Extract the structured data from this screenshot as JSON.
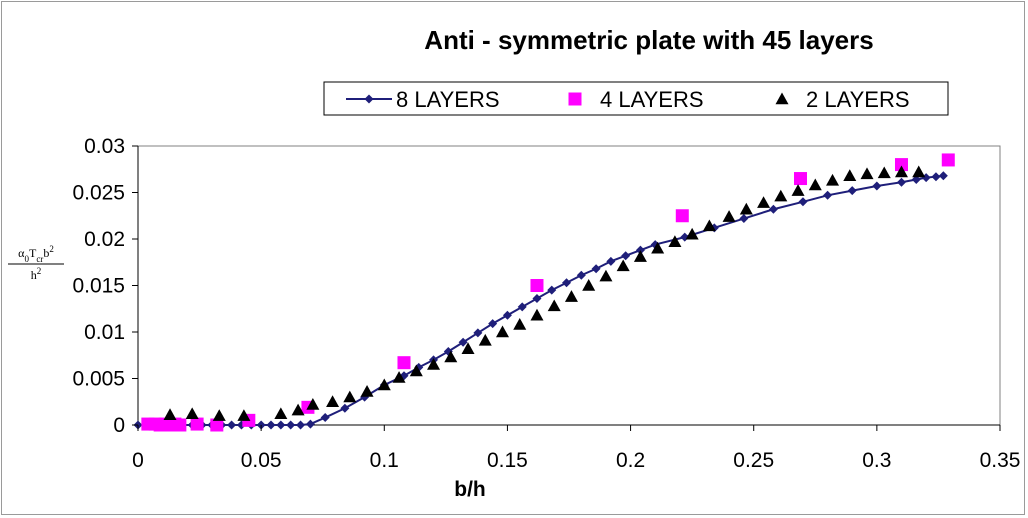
{
  "chart_data": {
    "type": "scatter",
    "title": "Anti - symmetric plate with 45 layers",
    "xlabel": "b/h",
    "ylabel": {
      "numerator_parts": [
        {
          "text": "α",
          "style": "normal"
        },
        {
          "text": "0",
          "style": "sub"
        },
        {
          "text": "T",
          "style": "normal"
        },
        {
          "text": "cr",
          "style": "sub"
        },
        {
          "text": "b",
          "style": "normal"
        },
        {
          "text": "2",
          "style": "sup"
        }
      ],
      "denominator_parts": [
        {
          "text": "h",
          "style": "normal"
        },
        {
          "text": "2",
          "style": "sup"
        }
      ]
    },
    "xlim": [
      0,
      0.35
    ],
    "ylim": [
      0,
      0.03
    ],
    "x_ticks": [
      0,
      0.05,
      0.1,
      0.15,
      0.2,
      0.25,
      0.3,
      0.35
    ],
    "x_tick_labels": [
      "0",
      "0.05",
      "0.1",
      "0.15",
      "0.2",
      "0.25",
      "0.3",
      "0.35"
    ],
    "y_ticks": [
      0,
      0.005,
      0.01,
      0.015,
      0.02,
      0.025,
      0.03
    ],
    "y_tick_labels": [
      "0",
      "0.005",
      "0.01",
      "0.015",
      "0.02",
      "0.025",
      "0.03"
    ],
    "grid": false,
    "legend_position": "top-center",
    "series": [
      {
        "name": "8 LAYERS",
        "marker": "diamond",
        "line": true,
        "color": "#1f1f7a",
        "x": [
          0.0,
          0.003,
          0.007,
          0.01,
          0.014,
          0.018,
          0.022,
          0.026,
          0.03,
          0.034,
          0.038,
          0.042,
          0.046,
          0.05,
          0.054,
          0.058,
          0.062,
          0.066,
          0.07,
          0.076,
          0.084,
          0.092,
          0.1,
          0.108,
          0.114,
          0.12,
          0.126,
          0.132,
          0.138,
          0.144,
          0.15,
          0.156,
          0.162,
          0.168,
          0.174,
          0.18,
          0.186,
          0.192,
          0.198,
          0.204,
          0.21,
          0.222,
          0.234,
          0.246,
          0.258,
          0.27,
          0.28,
          0.29,
          0.3,
          0.31,
          0.316,
          0.32,
          0.324,
          0.327
        ],
        "y": [
          0.0,
          0.0,
          0.0,
          0.0,
          0.0,
          0.0,
          0.0,
          0.0,
          0.0,
          0.0,
          0.0,
          0.0,
          0.0,
          0.0,
          0.0,
          0.0,
          0.0,
          0.0,
          0.0001,
          0.0008,
          0.0018,
          0.003,
          0.0043,
          0.0053,
          0.0062,
          0.007,
          0.0079,
          0.0089,
          0.0099,
          0.0109,
          0.0118,
          0.0127,
          0.0136,
          0.0145,
          0.0153,
          0.0161,
          0.0168,
          0.0176,
          0.0182,
          0.0188,
          0.0194,
          0.0202,
          0.0212,
          0.0222,
          0.0232,
          0.024,
          0.0247,
          0.0252,
          0.0257,
          0.0261,
          0.0264,
          0.0266,
          0.0267,
          0.0268
        ]
      },
      {
        "name": "4 LAYERS",
        "marker": "square",
        "line": false,
        "color": "#ff00ff",
        "x": [
          0.004,
          0.007,
          0.009,
          0.011,
          0.013,
          0.015,
          0.017,
          0.024,
          0.032,
          0.045,
          0.069,
          0.108,
          0.162,
          0.221,
          0.269,
          0.31,
          0.329
        ],
        "y": [
          0.0001,
          0.0001,
          0.0,
          0.0001,
          0.0,
          0.0001,
          0.0,
          0.0001,
          0.0,
          0.0005,
          0.0019,
          0.0067,
          0.015,
          0.0225,
          0.0265,
          0.028,
          0.0285
        ]
      },
      {
        "name": "2 LAYERS",
        "marker": "triangle",
        "line": false,
        "color": "#000000",
        "x": [
          0.013,
          0.022,
          0.033,
          0.043,
          0.058,
          0.065,
          0.071,
          0.079,
          0.086,
          0.093,
          0.1,
          0.106,
          0.113,
          0.12,
          0.127,
          0.134,
          0.141,
          0.148,
          0.155,
          0.162,
          0.169,
          0.176,
          0.183,
          0.19,
          0.197,
          0.204,
          0.211,
          0.218,
          0.225,
          0.232,
          0.24,
          0.247,
          0.254,
          0.261,
          0.268,
          0.275,
          0.282,
          0.289,
          0.296,
          0.303,
          0.31,
          0.317
        ],
        "y": [
          0.0011,
          0.0012,
          0.001,
          0.001,
          0.0012,
          0.0016,
          0.0022,
          0.0025,
          0.003,
          0.0036,
          0.0043,
          0.0051,
          0.0058,
          0.0065,
          0.0073,
          0.0082,
          0.0091,
          0.01,
          0.0108,
          0.0118,
          0.0128,
          0.0138,
          0.015,
          0.016,
          0.0171,
          0.0181,
          0.019,
          0.0197,
          0.0205,
          0.0214,
          0.0224,
          0.0232,
          0.0239,
          0.0246,
          0.0252,
          0.0258,
          0.0263,
          0.0268,
          0.027,
          0.0271,
          0.0272,
          0.0272
        ]
      }
    ]
  }
}
